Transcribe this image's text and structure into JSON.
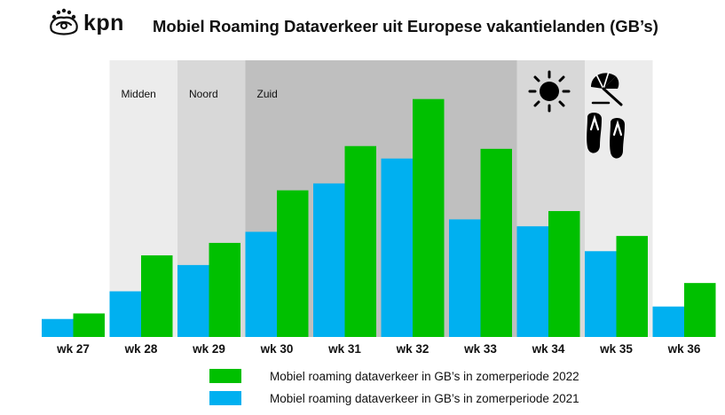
{
  "brand": {
    "logo_text": "kpn"
  },
  "chart_data": {
    "type": "bar",
    "title": "Mobiel Roaming Dataverkeer uit Europese vakantielanden (GB’s)",
    "categories": [
      "wk 27",
      "wk 28",
      "wk 29",
      "wk 30",
      "wk 31",
      "wk 32",
      "wk 33",
      "wk 34",
      "wk 35",
      "wk 36"
    ],
    "series": [
      {
        "name": "Mobiel roaming dataverkeer in GB’s in zomerperiode 2021",
        "color": "#00b0f0",
        "values": [
          6.5,
          16.5,
          26,
          38,
          55.5,
          64.5,
          42.5,
          40,
          31,
          11
        ]
      },
      {
        "name": "Mobiel roaming dataverkeer in GB’s in zomerperiode 2022",
        "color": "#00c000",
        "values": [
          8.5,
          29.5,
          34,
          53,
          69,
          86,
          68,
          45.5,
          36.5,
          19.5
        ]
      }
    ],
    "ylim": [
      0,
      100
    ],
    "xlabel": "",
    "ylabel": "",
    "grid": false,
    "legend_position": "bottom",
    "regions": [
      {
        "label": "Midden",
        "from_category": "wk 28",
        "to_category": "wk 28",
        "color": "#ececec"
      },
      {
        "label": "Noord",
        "from_category": "wk 29",
        "to_category": "wk 29",
        "color": "#d8d8d8"
      },
      {
        "label": "Zuid",
        "from_category": "wk 30",
        "to_category": "wk 33",
        "color": "#bfbfbf"
      },
      {
        "label": "",
        "from_category": "wk 34",
        "to_category": "wk 34",
        "color": "#d8d8d8"
      },
      {
        "label": "",
        "from_category": "wk 35",
        "to_category": "wk 35",
        "color": "#ececec"
      }
    ]
  },
  "icons": [
    "kpn-crown-icon",
    "sun-icon",
    "beach-umbrella-icon",
    "flip-flops-icon"
  ]
}
